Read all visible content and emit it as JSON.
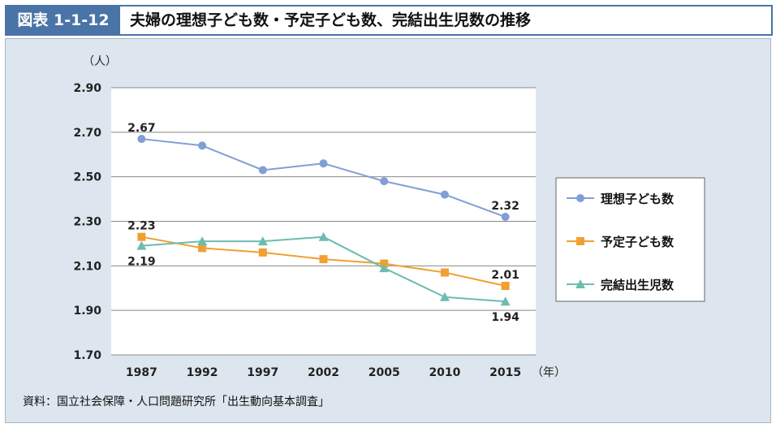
{
  "header": {
    "figure_label": "図表 1-1-12",
    "title": "夫婦の理想子ども数・予定子ども数、完結出生児数の推移"
  },
  "source": "資料：国立社会保障・人口問題研究所「出生動向基本調査」",
  "chart_data": {
    "type": "line",
    "title": "夫婦の理想子ども数・予定子ども数、完結出生児数の推移",
    "ylabel": "（人）",
    "xlabel": "（年）",
    "categories": [
      "1987",
      "1992",
      "1997",
      "2002",
      "2005",
      "2010",
      "2015"
    ],
    "ylim": [
      1.7,
      2.9
    ],
    "yticks": [
      "1.70",
      "1.90",
      "2.10",
      "2.30",
      "2.50",
      "2.70",
      "2.90"
    ],
    "grid": true,
    "legend_position": "right",
    "series": [
      {
        "name": "理想子ども数",
        "color": "#7f9fd6",
        "marker": "circle",
        "values": [
          2.67,
          2.64,
          2.53,
          2.56,
          2.48,
          2.42,
          2.32
        ]
      },
      {
        "name": "予定子ども数",
        "color": "#f0a030",
        "marker": "square",
        "values": [
          2.23,
          2.18,
          2.16,
          2.13,
          2.11,
          2.07,
          2.01
        ]
      },
      {
        "name": "完結出生児数",
        "color": "#6dbcb0",
        "marker": "triangle",
        "values": [
          2.19,
          2.21,
          2.21,
          2.23,
          2.09,
          1.96,
          1.94
        ]
      }
    ],
    "annotations": [
      {
        "series": 0,
        "index": 0,
        "text": "2.67",
        "pos": "above"
      },
      {
        "series": 0,
        "index": 6,
        "text": "2.32",
        "pos": "above"
      },
      {
        "series": 1,
        "index": 0,
        "text": "2.23",
        "pos": "above"
      },
      {
        "series": 1,
        "index": 6,
        "text": "2.01",
        "pos": "above"
      },
      {
        "series": 2,
        "index": 0,
        "text": "2.19",
        "pos": "below"
      },
      {
        "series": 2,
        "index": 6,
        "text": "1.94",
        "pos": "below"
      }
    ]
  }
}
